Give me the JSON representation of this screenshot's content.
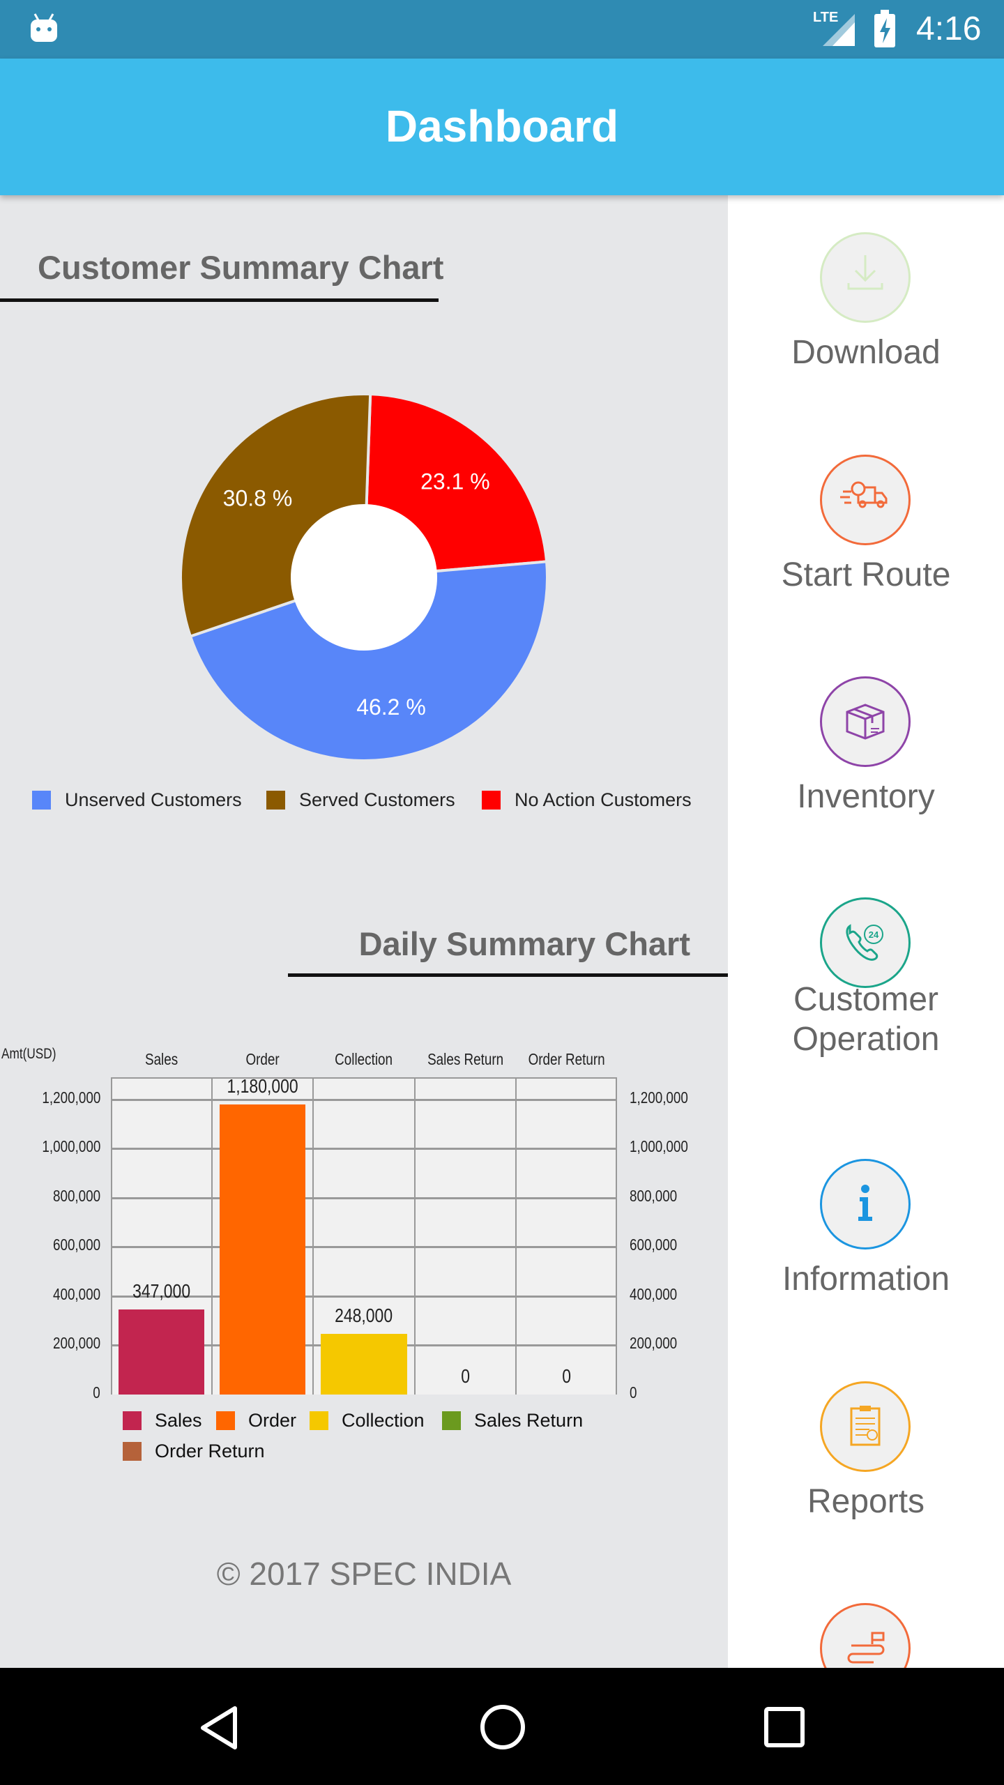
{
  "status_bar": {
    "network": "LTE",
    "time": "4:16"
  },
  "header": {
    "title": "Dashboard"
  },
  "customer_chart": {
    "title": "Customer Summary Chart"
  },
  "daily_chart": {
    "title": "Daily Summary Chart"
  },
  "footer": {
    "text": "© 2017 SPEC INDIA"
  },
  "menu": [
    {
      "label": "Download",
      "icon": "download-icon",
      "color": "#D5EBC3"
    },
    {
      "label": "Start Route",
      "icon": "truck-icon",
      "color": "#F26A3A"
    },
    {
      "label": "Inventory",
      "icon": "box-icon",
      "color": "#8E44A8"
    },
    {
      "label": "Customer Operation",
      "label1": "Customer",
      "label2": "Operation",
      "icon": "phone-24-icon",
      "color": "#1BA58A"
    },
    {
      "label": "Information",
      "icon": "info-icon",
      "color": "#1B95E0"
    },
    {
      "label": "Reports",
      "icon": "clipboard-icon",
      "color": "#F5A623"
    },
    {
      "label": "",
      "icon": "route-icon",
      "color": "#F26A3A"
    }
  ],
  "chart_data": [
    {
      "type": "pie",
      "title": "Customer Summary Chart",
      "labels": [
        "Unserved Customers",
        "Served Customers",
        "No Action Customers"
      ],
      "values": [
        46.2,
        30.8,
        23.1
      ],
      "value_labels": [
        "46.2 %",
        "30.8 %",
        "23.1 %"
      ],
      "colors": [
        "#5886F9",
        "#8B5A00",
        "#FF0000"
      ],
      "legend": "bottom"
    },
    {
      "type": "bar",
      "title": "Daily Summary Chart",
      "ylabel": "Amt(USD)",
      "categories": [
        "Sales",
        "Order",
        "Collection",
        "Sales Return",
        "Order Return"
      ],
      "values": [
        347000,
        1180000,
        248000,
        0,
        0
      ],
      "value_labels": [
        "347,000",
        "1,180,000",
        "248,000",
        "0",
        "0"
      ],
      "colors": [
        "#C2254F",
        "#FF6600",
        "#F5C800",
        "#6B9A1F",
        "#B5623A"
      ],
      "yticks": [
        "0",
        "200,000",
        "400,000",
        "600,000",
        "800,000",
        "1,000,000",
        "1,200,000"
      ],
      "ytick_values": [
        0,
        200000,
        400000,
        600000,
        800000,
        1000000,
        1200000
      ],
      "ylim": [
        0,
        1290000
      ],
      "legend": [
        "Sales",
        "Order",
        "Collection",
        "Sales Return",
        "Order Return"
      ],
      "grid": true
    }
  ]
}
